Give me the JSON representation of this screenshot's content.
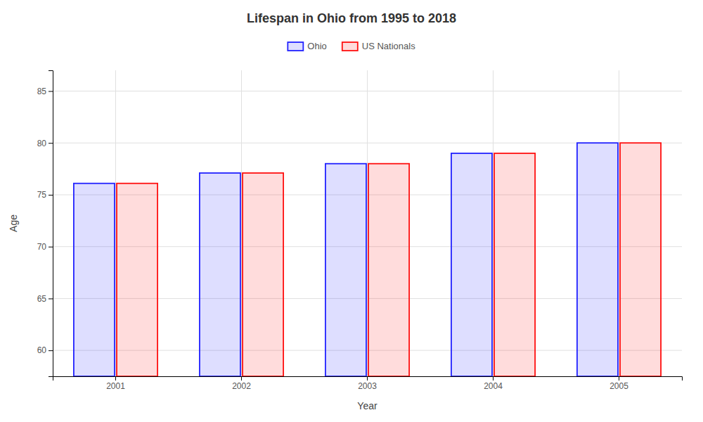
{
  "chart_data": {
    "type": "bar",
    "title": "Lifespan in Ohio from 1995 to 2018",
    "xlabel": "Year",
    "ylabel": "Age",
    "categories": [
      "2001",
      "2002",
      "2003",
      "2004",
      "2005"
    ],
    "series": [
      {
        "name": "Ohio",
        "color": "#2222ff",
        "values": [
          76.1,
          77.1,
          78.0,
          79.0,
          80.0
        ]
      },
      {
        "name": "US Nationals",
        "color": "#ff1111",
        "values": [
          76.1,
          77.1,
          78.0,
          79.0,
          80.0
        ]
      }
    ],
    "ylim": [
      57.5,
      87
    ],
    "yticks": [
      60,
      65,
      70,
      75,
      80,
      85
    ],
    "grid": true,
    "legend": "top"
  }
}
